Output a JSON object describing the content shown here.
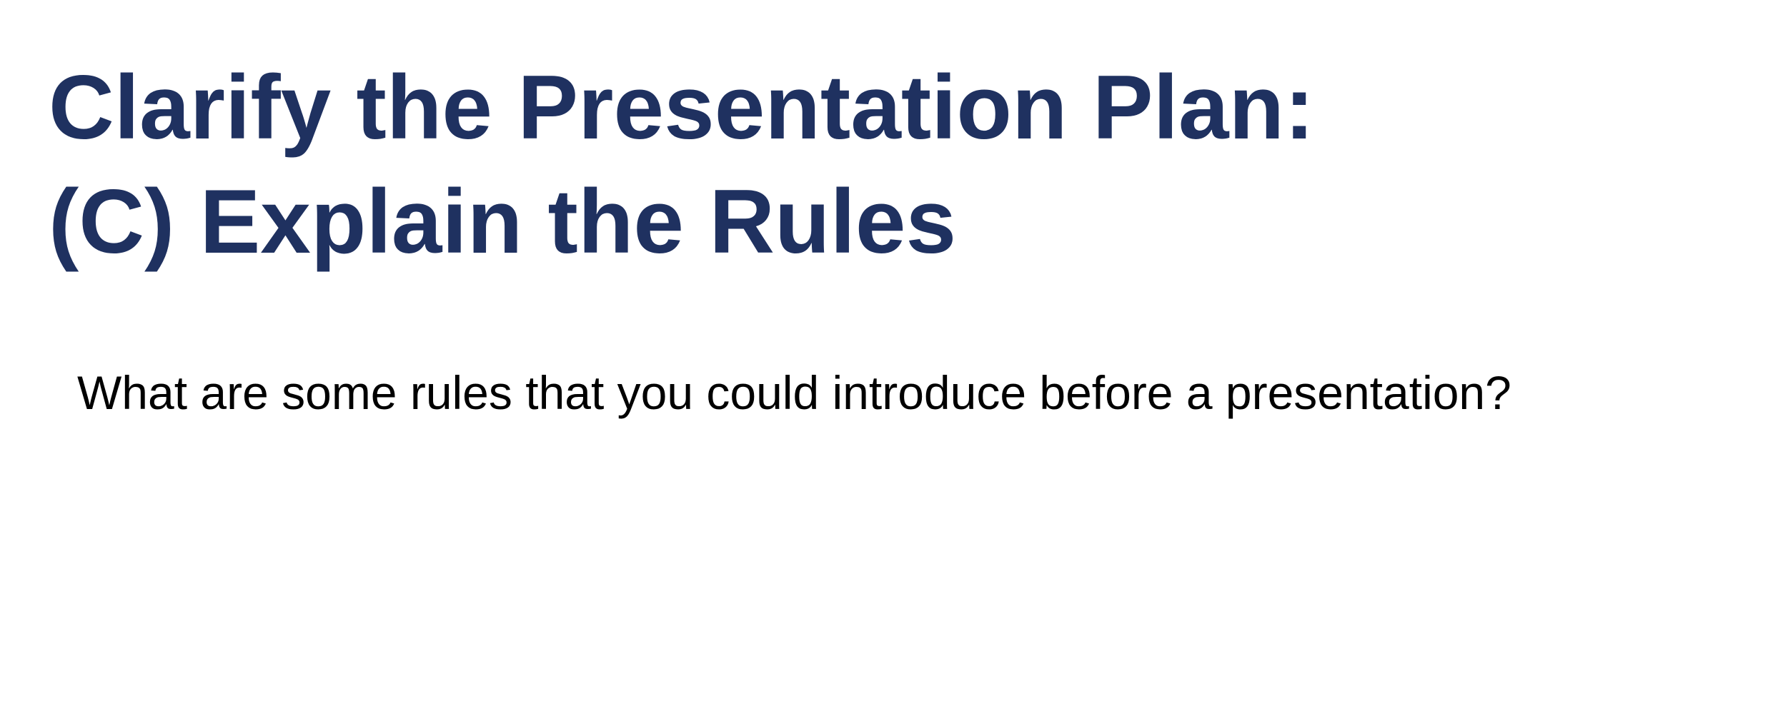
{
  "slide": {
    "title_line1": "Clarify the Presentation Plan:",
    "title_line2": "(C) Explain the Rules",
    "body": "What are some rules that you could introduce before a presentation?"
  },
  "colors": {
    "title": "#1f3160",
    "body": "#000000",
    "background": "#ffffff"
  }
}
